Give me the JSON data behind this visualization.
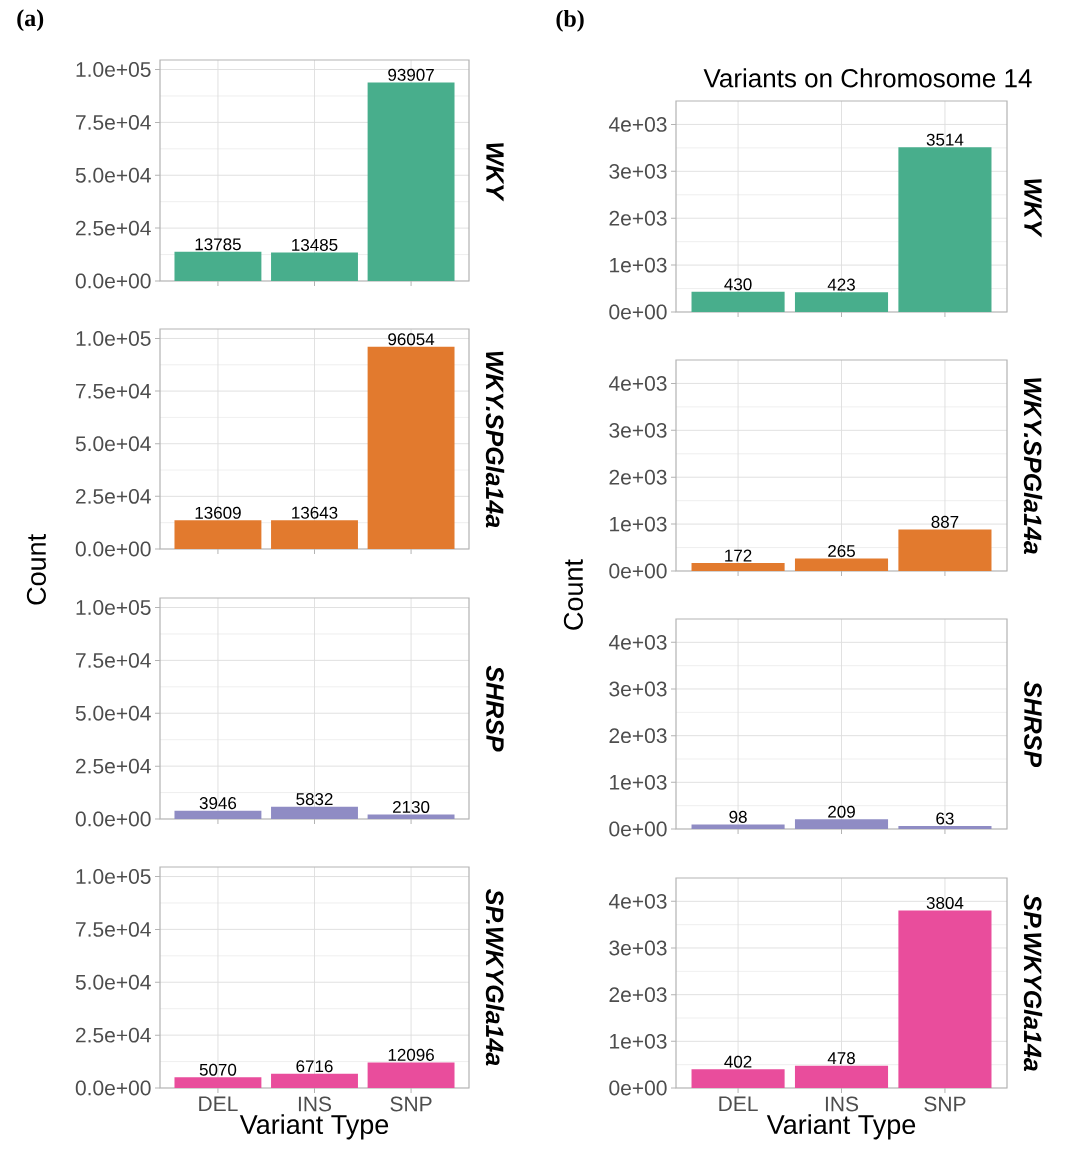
{
  "chart_data": [
    {
      "type": "bar",
      "annotations": [
        "WKY",
        "(a)"
      ],
      "categories": [
        null,
        null,
        null
      ],
      "values": [
        13785,
        13485,
        93907
      ],
      "color": "#48ae8c",
      "ylim": [
        0,
        104500
      ],
      "yticks": [
        {
          "value": 0,
          "label": "0.0e+00"
        },
        {
          "value": 25000,
          "label": "2.5e+04"
        },
        {
          "value": 50000,
          "label": "5.0e+04"
        },
        {
          "value": 75000,
          "label": "7.5e+04"
        },
        {
          "value": 100000,
          "label": "1.0e+05"
        }
      ],
      "grid": true,
      "data_labels": true,
      "tick_labels": "y"
    },
    {
      "type": "bar",
      "annotations": [
        "WKY.SPGla14a"
      ],
      "ylabel": "Count",
      "categories": [
        null,
        null,
        null
      ],
      "values": [
        13609,
        13643,
        96054
      ],
      "color": "#e27a2e",
      "ylim": [
        0,
        104500
      ],
      "yticks": [
        {
          "value": 0,
          "label": "0.0e+00"
        },
        {
          "value": 25000,
          "label": "2.5e+04"
        },
        {
          "value": 50000,
          "label": "5.0e+04"
        },
        {
          "value": 75000,
          "label": "7.5e+04"
        },
        {
          "value": 100000,
          "label": "1.0e+05"
        }
      ],
      "grid": true,
      "data_labels": true,
      "tick_labels": "y"
    },
    {
      "type": "bar",
      "annotations": [
        "SHRSP"
      ],
      "categories": [
        null,
        null,
        null
      ],
      "values": [
        3946,
        5832,
        2130
      ],
      "color": "#8f8cc4",
      "ylim": [
        0,
        104500
      ],
      "yticks": [
        {
          "value": 0,
          "label": "0.0e+00"
        },
        {
          "value": 25000,
          "label": "2.5e+04"
        },
        {
          "value": 50000,
          "label": "5.0e+04"
        },
        {
          "value": 75000,
          "label": "7.5e+04"
        },
        {
          "value": 100000,
          "label": "1.0e+05"
        }
      ],
      "grid": true,
      "data_labels": true,
      "tick_labels": "y"
    },
    {
      "type": "bar",
      "annotations": [
        "SP.WKYGla14a"
      ],
      "xlabel": "Variant Type",
      "categories": [
        "DEL",
        "INS",
        "SNP"
      ],
      "values": [
        5070,
        6716,
        12096
      ],
      "color": "#e94d9c",
      "ylim": [
        0,
        104500
      ],
      "yticks": [
        {
          "value": 0,
          "label": "0.0e+00"
        },
        {
          "value": 25000,
          "label": "2.5e+04"
        },
        {
          "value": 50000,
          "label": "5.0e+04"
        },
        {
          "value": 75000,
          "label": "7.5e+04"
        },
        {
          "value": 100000,
          "label": "1.0e+05"
        }
      ],
      "grid": true,
      "data_labels": true
    },
    {
      "type": "bar",
      "title": "Variants on Chromosome 14",
      "annotations": [
        "WKY",
        "(b)"
      ],
      "categories": [
        null,
        null,
        null
      ],
      "values": [
        430,
        423,
        3514
      ],
      "color": "#48ae8c",
      "ylim": [
        0,
        4500
      ],
      "yticks": [
        {
          "value": 0,
          "label": "0e+00"
        },
        {
          "value": 1000,
          "label": "1e+03"
        },
        {
          "value": 2000,
          "label": "2e+03"
        },
        {
          "value": 3000,
          "label": "3e+03"
        },
        {
          "value": 4000,
          "label": "4e+03"
        }
      ],
      "grid": true,
      "data_labels": true,
      "tick_labels": "y"
    },
    {
      "type": "bar",
      "annotations": [
        "WKY.SPGla14a"
      ],
      "ylabel": "Count",
      "categories": [
        null,
        null,
        null
      ],
      "values": [
        172,
        265,
        887
      ],
      "color": "#e27a2e",
      "ylim": [
        0,
        4500
      ],
      "yticks": [
        {
          "value": 0,
          "label": "0e+00"
        },
        {
          "value": 1000,
          "label": "1e+03"
        },
        {
          "value": 2000,
          "label": "2e+03"
        },
        {
          "value": 3000,
          "label": "3e+03"
        },
        {
          "value": 4000,
          "label": "4e+03"
        }
      ],
      "grid": true,
      "data_labels": true,
      "tick_labels": "y"
    },
    {
      "type": "bar",
      "annotations": [
        "SHRSP"
      ],
      "categories": [
        null,
        null,
        null
      ],
      "values": [
        98,
        209,
        63
      ],
      "color": "#8f8cc4",
      "ylim": [
        0,
        4500
      ],
      "yticks": [
        {
          "value": 0,
          "label": "0e+00"
        },
        {
          "value": 1000,
          "label": "1e+03"
        },
        {
          "value": 2000,
          "label": "2e+03"
        },
        {
          "value": 3000,
          "label": "3e+03"
        },
        {
          "value": 4000,
          "label": "4e+03"
        }
      ],
      "grid": true,
      "data_labels": true,
      "tick_labels": "y"
    },
    {
      "type": "bar",
      "annotations": [
        "SP.WKYGla14a"
      ],
      "xlabel": "Variant Type",
      "categories": [
        "DEL",
        "INS",
        "SNP"
      ],
      "values": [
        402,
        478,
        3804
      ],
      "color": "#e94d9c",
      "ylim": [
        0,
        4500
      ],
      "yticks": [
        {
          "value": 0,
          "label": "0e+00"
        },
        {
          "value": 1000,
          "label": "1e+03"
        },
        {
          "value": 2000,
          "label": "2e+03"
        },
        {
          "value": 3000,
          "label": "3e+03"
        },
        {
          "value": 4000,
          "label": "4e+03"
        }
      ],
      "grid": true,
      "data_labels": true
    }
  ]
}
